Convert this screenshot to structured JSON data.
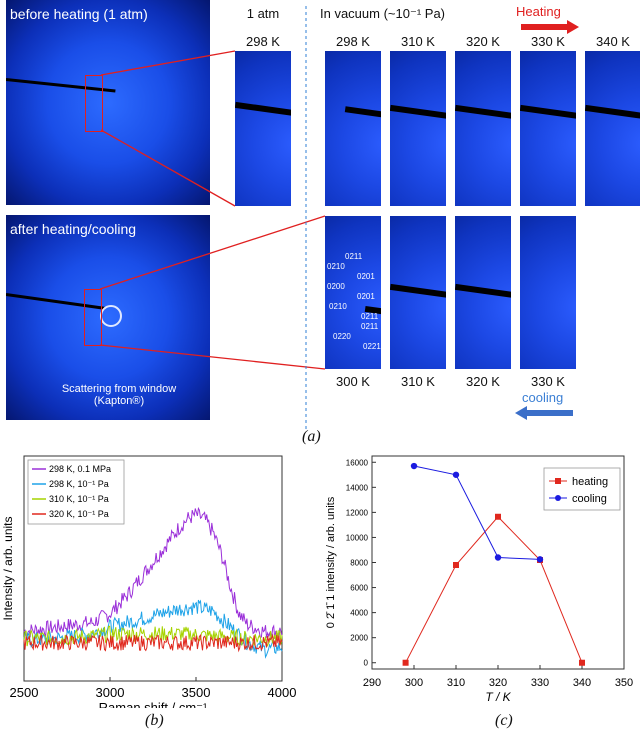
{
  "panel_a": {
    "label": "(a)",
    "before_caption": "before heating (1 atm)",
    "after_caption": "after heating/cooling",
    "scatter_note_line1": "Scattering from window",
    "scatter_note_line2": "(Kapton®)",
    "atm_header": "1 atm",
    "vacuum_header": "In vacuum (~10⁻¹ Pa)",
    "heating_label": "Heating",
    "cooling_label": "cooling",
    "top_temps": [
      "298 K",
      "298 K",
      "310 K",
      "320 K",
      "330 K",
      "340 K"
    ],
    "bottom_temps": [
      "300 K",
      "310 K",
      "320 K",
      "330 K"
    ],
    "indices": [
      "0211",
      "0210",
      "0201",
      "0200",
      "0201",
      "0210",
      "0211",
      "0211",
      "0220",
      "0221"
    ]
  },
  "panel_b": {
    "label": "(b)",
    "chart_data": {
      "type": "line",
      "xlabel": "Raman shift / cm⁻¹",
      "ylabel": "Intensity / arb. units",
      "xlim": [
        2500,
        4000
      ],
      "xticks": [
        "2500",
        "3000",
        "3500",
        "4000"
      ],
      "legend_placement": "top-left",
      "series": [
        {
          "name": "298 K, 0.1 MPa",
          "color": "#9b30d9",
          "x": [
            2500,
            2700,
            2900,
            3000,
            3100,
            3200,
            3300,
            3400,
            3450,
            3500,
            3550,
            3600,
            3650,
            3700,
            3750,
            3800,
            3900,
            4000
          ],
          "y": [
            0.22,
            0.24,
            0.26,
            0.3,
            0.38,
            0.48,
            0.58,
            0.68,
            0.72,
            0.74,
            0.72,
            0.66,
            0.56,
            0.42,
            0.3,
            0.25,
            0.22,
            0.22
          ]
        },
        {
          "name": "298 K, 10⁻¹ Pa",
          "color": "#1fa3e8",
          "x": [
            2500,
            2700,
            2900,
            3000,
            3100,
            3200,
            3300,
            3400,
            3500,
            3600,
            3700,
            3800,
            3900,
            4000
          ],
          "y": [
            0.18,
            0.19,
            0.21,
            0.24,
            0.26,
            0.28,
            0.3,
            0.32,
            0.33,
            0.31,
            0.24,
            0.17,
            0.14,
            0.15
          ]
        },
        {
          "name": "310 K, 10⁻¹ Pa",
          "color": "#a6d300",
          "x": [
            2500,
            2700,
            2900,
            3000,
            3200,
            3400,
            3600,
            3800,
            4000
          ],
          "y": [
            0.19,
            0.19,
            0.2,
            0.21,
            0.21,
            0.21,
            0.2,
            0.19,
            0.19
          ]
        },
        {
          "name": "320 K, 10⁻¹ Pa",
          "color": "#e0281e",
          "x": [
            2500,
            2700,
            2900,
            3000,
            3200,
            3400,
            3600,
            3800,
            4000
          ],
          "y": [
            0.17,
            0.17,
            0.17,
            0.17,
            0.17,
            0.17,
            0.17,
            0.17,
            0.17
          ]
        }
      ]
    }
  },
  "panel_c": {
    "label": "(c)",
    "chart_data": {
      "type": "line",
      "xlabel": "T / K",
      "ylabel": "0 2̄ 1̄ 1 intensity / arb. units",
      "xlim": [
        290,
        350
      ],
      "ylim": [
        -500,
        16500
      ],
      "xticks": [
        290,
        300,
        310,
        320,
        330,
        340,
        350
      ],
      "yticks": [
        0,
        2000,
        4000,
        6000,
        8000,
        10000,
        12000,
        14000,
        16000
      ],
      "legend_placement": "top-right",
      "series": [
        {
          "name": "heating",
          "color": "#e0281e",
          "marker": "square",
          "x": [
            298,
            310,
            320,
            330,
            340
          ],
          "y": [
            0,
            7800,
            11650,
            8200,
            0
          ]
        },
        {
          "name": "cooling",
          "color": "#1b1be0",
          "marker": "circle",
          "x": [
            300,
            310,
            320,
            330
          ],
          "y": [
            15700,
            15000,
            8400,
            8250
          ]
        }
      ]
    }
  }
}
